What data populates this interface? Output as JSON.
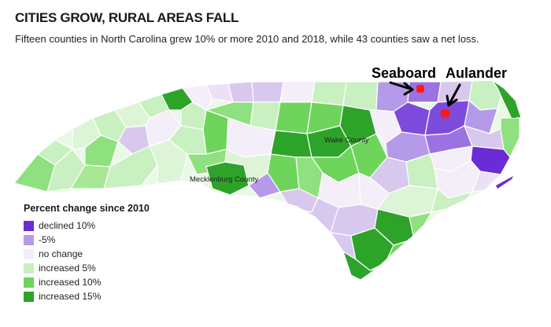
{
  "title": "CITIES GROW, RURAL AREAS FALL",
  "subtitle": "Fifteen counties in North Carolina grew 10% or more 2010 and 2018, while 43 counties saw a net loss.",
  "labels": {
    "wake": "Wake County",
    "mecklenburg": "Mecklenburg County",
    "seaboard": "Seaboard",
    "aulander": "Aulander"
  },
  "legend": {
    "title": "Percent change since 2010",
    "items": [
      {
        "label": "declined 10%",
        "color": "#6b2bd6"
      },
      {
        "label": "-5%",
        "color": "#b49ae8"
      },
      {
        "label": "no change",
        "color": "#f4eef8"
      },
      {
        "label": "increased 5%",
        "color": "#c8f0c0"
      },
      {
        "label": "increased 10%",
        "color": "#6fd45c"
      },
      {
        "label": "increased 15%",
        "color": "#2ea32a"
      }
    ]
  },
  "colors": {
    "town_marker": "#ff1a1a",
    "water": "#ffffff"
  }
}
